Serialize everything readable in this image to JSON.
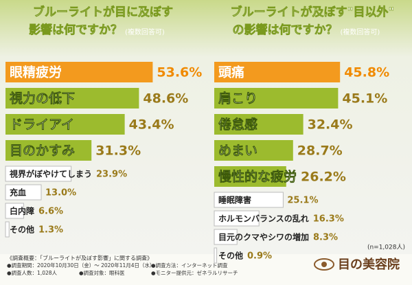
{
  "chart_data": [
    {
      "type": "bar",
      "title_lines": [
        "ブルーライトが目に及ぼす",
        "影響は何ですか？"
      ],
      "subtitle": "(複数回答可)",
      "categories": [
        "眼精疲労",
        "視力の低下",
        "ドライアイ",
        "目のかすみ",
        "視界がぼやけてしまう",
        "充血",
        "白内障",
        "その他"
      ],
      "values": [
        53.6,
        48.6,
        43.4,
        31.3,
        23.9,
        13.0,
        6.6,
        1.3
      ],
      "value_labels": [
        "53.6%",
        "48.6%",
        "43.4%",
        "31.3%",
        "23.9%",
        "13.0%",
        "6.6%",
        "1.3%"
      ],
      "colors": [
        "#f39a1e",
        "#9cbb2e",
        "#9cbb2e",
        "#9cbb2e",
        "#ffffff",
        "#ffffff",
        "#ffffff",
        "#ffffff"
      ],
      "xlim": [
        0,
        60
      ]
    },
    {
      "type": "bar",
      "title_lines": [
        "ブルーライトが及ぼす\"目以外\"",
        "の影響は何ですか？"
      ],
      "subtitle": "(複数回答可)",
      "categories": [
        "頭痛",
        "肩こり",
        "倦怠感",
        "めまい",
        "慢性的な疲労",
        "睡眠障害",
        "ホルモンバランスの乱れ",
        "目元のクマやシワの増加",
        "その他"
      ],
      "values": [
        45.8,
        45.1,
        32.4,
        28.7,
        26.2,
        25.1,
        16.3,
        8.3,
        0.9
      ],
      "value_labels": [
        "45.8%",
        "45.1%",
        "32.4%",
        "28.7%",
        "26.2%",
        "25.1%",
        "16.3%",
        "8.3%",
        "0.9%"
      ],
      "colors": [
        "#f39a1e",
        "#9cbb2e",
        "#9cbb2e",
        "#9cbb2e",
        "#9cbb2e",
        "#ffffff",
        "#ffffff",
        "#ffffff",
        "#ffffff"
      ],
      "xlim": [
        0,
        60
      ]
    }
  ],
  "note": "(n=1,028人)",
  "footer": [
    "《調査概要：「ブルーライトが及ぼす影響」に関する調査》",
    "●調査期間：2020年10月30日（金）～ 2020年11月4日（水）",
    "●調査方法：インターネット調査",
    "●調査人数：1,028人",
    "●調査対象：眼科医",
    "●モニター提供元：ゼネラルリサーチ"
  ],
  "logo": "目の美容院"
}
